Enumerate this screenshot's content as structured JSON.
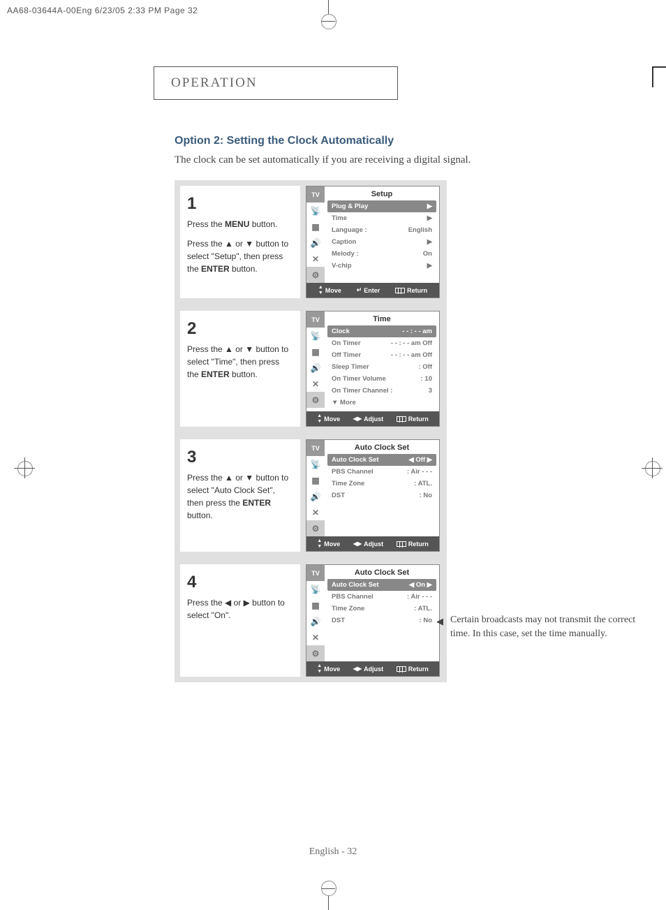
{
  "print_header": "AA68-03644A-00Eng  6/23/05  2:33 PM  Page 32",
  "section_title": "OPERATION",
  "option_heading": "Option 2: Setting the Clock Automatically",
  "option_sub": "The clock can be set automatically if you are receiving a digital signal.",
  "steps": [
    {
      "num": "1",
      "text_parts": [
        "Press the <b>MENU</b> button.",
        "Press the ▲ or ▼ button to select \"Setup\", then press the <b>ENTER</b> button."
      ],
      "osd": {
        "title": "Setup",
        "rows": [
          {
            "label": "Plug & Play",
            "value": "",
            "highlight": true,
            "arrow_r": true
          },
          {
            "label": "Time",
            "value": "",
            "arrow_r": true,
            "dim": true
          },
          {
            "label": "Language :",
            "value": "English"
          },
          {
            "label": "Caption",
            "value": "",
            "arrow_r": true
          },
          {
            "label": "Melody    :",
            "value": "On"
          },
          {
            "label": "V-chip",
            "value": "",
            "arrow_r": true
          }
        ],
        "footer": [
          {
            "icon": "updown",
            "label": "Move"
          },
          {
            "icon": "enter",
            "label": "Enter"
          },
          {
            "icon": "return",
            "label": "Return"
          }
        ]
      }
    },
    {
      "num": "2",
      "text_parts": [
        "Press the ▲ or ▼ button to select \"Time\", then press the <b>ENTER</b> button."
      ],
      "osd": {
        "title": "Time",
        "rows": [
          {
            "label": "Clock",
            "value": "- - : - - am",
            "highlight": true
          },
          {
            "label": "On Timer",
            "value": "- - : - - am Off"
          },
          {
            "label": "Off Timer",
            "value": "- - : - - am Off"
          },
          {
            "label": "Sleep Timer",
            "value": ": Off"
          },
          {
            "label": "On Timer Volume",
            "value": ": 10"
          },
          {
            "label": "On Timer Channel :",
            "value": "3"
          },
          {
            "label": "▼ More",
            "value": ""
          }
        ],
        "footer": [
          {
            "icon": "updown",
            "label": "Move"
          },
          {
            "icon": "leftright",
            "label": "Adjust"
          },
          {
            "icon": "return",
            "label": "Return"
          }
        ]
      }
    },
    {
      "num": "3",
      "text_parts": [
        "Press the ▲ or ▼ button to select \"Auto Clock Set\", then press the <b>ENTER</b> button."
      ],
      "osd": {
        "title": "Auto Clock Set",
        "rows": [
          {
            "label": "Auto Clock Set",
            "value": "◀   Off   ▶",
            "highlight": true
          },
          {
            "label": "PBS Channel",
            "value": ": Air    - - -"
          },
          {
            "label": "Time Zone",
            "value": ": ATL."
          },
          {
            "label": "DST",
            "value": ": No"
          },
          {
            "label": "",
            "value": ""
          },
          {
            "label": "",
            "value": ""
          }
        ],
        "footer": [
          {
            "icon": "updown",
            "label": "Move"
          },
          {
            "icon": "leftright",
            "label": "Adjust"
          },
          {
            "icon": "return",
            "label": "Return"
          }
        ]
      }
    },
    {
      "num": "4",
      "text_parts": [
        "Press the ◀ or ▶ button to select \"On\"."
      ],
      "osd": {
        "title": "Auto Clock Set",
        "rows": [
          {
            "label": "Auto Clock Set",
            "value": "◀   On   ▶",
            "highlight": true
          },
          {
            "label": "PBS Channel",
            "value": ": Air    - - -"
          },
          {
            "label": "Time Zone",
            "value": ": ATL."
          },
          {
            "label": "DST",
            "value": ": No"
          },
          {
            "label": "",
            "value": ""
          },
          {
            "label": "",
            "value": ""
          }
        ],
        "footer": [
          {
            "icon": "updown",
            "label": "Move"
          },
          {
            "icon": "leftright",
            "label": "Adjust"
          },
          {
            "icon": "return",
            "label": "Return"
          }
        ]
      }
    }
  ],
  "side_note": "Certain broadcasts may not transmit the correct time. In this case, set the time manually.",
  "page_footer": "English - 32",
  "osd_side_icons": [
    "TV",
    "📡",
    "▦",
    "🔊",
    "✕",
    "⚙"
  ]
}
